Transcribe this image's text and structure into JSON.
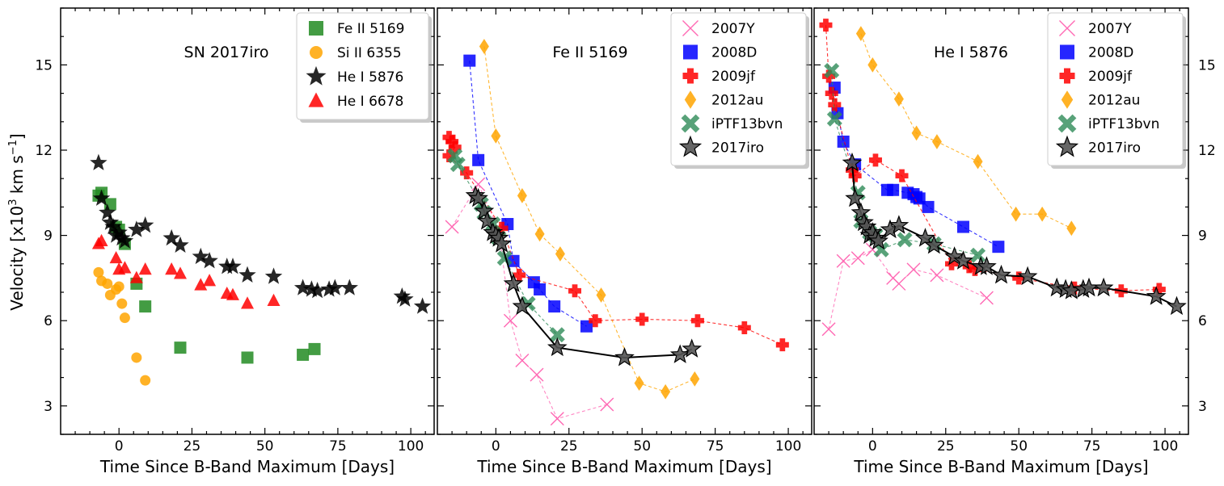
{
  "figure": {
    "ylabel": "Velocity [x10$^3$ km s$^{-1}$]",
    "ylabel_main": "Velocity [x10",
    "ylabel_sup1": "3",
    "ylabel_mid": " km s",
    "ylabel_sup2": "−1",
    "ylabel_end": "]"
  },
  "chart_data": [
    {
      "type": "scatter",
      "title": "SN 2017iro",
      "xlabel": "Time Since B-Band Maximum [Days]",
      "ylabel": "Velocity [x10^3 km s^-1]",
      "xlim": [
        -20,
        108
      ],
      "ylim": [
        2,
        17
      ],
      "xticks": [
        0,
        25,
        50,
        75,
        100
      ],
      "yticks": [
        3,
        6,
        9,
        12,
        15
      ],
      "legend_position": "top-right",
      "series": [
        {
          "name": "Fe II 5169",
          "marker": "square",
          "color": "#228B22",
          "x": [
            -7,
            -6,
            -3,
            -1,
            0,
            2,
            6,
            9,
            21,
            44,
            63,
            67
          ],
          "y": [
            10.4,
            10.5,
            10.1,
            9.3,
            9.2,
            8.7,
            7.3,
            6.5,
            5.05,
            4.7,
            4.8,
            5.0
          ]
        },
        {
          "name": "Si II 6355",
          "marker": "circle",
          "color": "#FFA500",
          "x": [
            -7,
            -6,
            -4,
            -3,
            -1,
            0,
            1,
            2,
            6,
            9
          ],
          "y": [
            7.7,
            7.4,
            7.3,
            6.9,
            7.1,
            7.2,
            6.6,
            6.1,
            4.7,
            3.9
          ]
        },
        {
          "name": "He I 5876",
          "marker": "star",
          "color": "#000000",
          "x": [
            -7,
            -6,
            -4,
            -3,
            -2,
            -1,
            0,
            1,
            2,
            6,
            9,
            18,
            21,
            28,
            31,
            37,
            39,
            44,
            53,
            63,
            66,
            68,
            72,
            74,
            79,
            97,
            98,
            104
          ],
          "y": [
            11.55,
            10.3,
            9.8,
            9.45,
            9.3,
            9.0,
            9.1,
            8.9,
            8.8,
            9.2,
            9.35,
            8.9,
            8.65,
            8.25,
            8.1,
            7.9,
            7.9,
            7.6,
            7.55,
            7.15,
            7.1,
            7.05,
            7.1,
            7.15,
            7.15,
            6.85,
            6.75,
            6.5
          ]
        },
        {
          "name": "He I 6678",
          "marker": "triangle",
          "color": "#FF0000",
          "x": [
            -7,
            -6,
            -1,
            0,
            2,
            6,
            9,
            18,
            21,
            28,
            31,
            37,
            39,
            44,
            53
          ],
          "y": [
            8.7,
            8.8,
            8.2,
            7.8,
            7.85,
            7.5,
            7.8,
            7.8,
            7.65,
            7.25,
            7.4,
            6.95,
            6.9,
            6.6,
            6.7
          ]
        }
      ]
    },
    {
      "type": "line",
      "title": "Fe II 5169",
      "xlabel": "Time Since B-Band Maximum [Days]",
      "xlim": [
        -20,
        108
      ],
      "ylim": [
        2,
        17
      ],
      "xticks": [
        0,
        25,
        50,
        75,
        100
      ],
      "yticks": [
        3,
        6,
        9,
        12,
        15
      ],
      "legend_position": "top-right",
      "series": [
        {
          "name": "2007Y",
          "marker": "x",
          "color": "#FF69B4",
          "x": [
            -15,
            -6,
            1,
            5,
            9,
            14,
            21,
            38
          ],
          "y": [
            9.3,
            10.8,
            9.2,
            6.0,
            4.6,
            4.1,
            2.55,
            3.05
          ]
        },
        {
          "name": "2008D",
          "marker": "square",
          "color": "#0000FF",
          "x": [
            -9,
            -6,
            4,
            6,
            13,
            15,
            20,
            31
          ],
          "y": [
            15.15,
            11.65,
            9.4,
            8.1,
            7.35,
            7.1,
            6.5,
            5.8
          ]
        },
        {
          "name": "2009jf",
          "marker": "plus",
          "color": "#FF0000",
          "x": [
            -16,
            -15,
            -14,
            -16,
            -10,
            2,
            8,
            27,
            34,
            50,
            69,
            85,
            98
          ],
          "y": [
            12.45,
            12.3,
            12.1,
            11.8,
            11.2,
            9.25,
            7.6,
            7.05,
            6.0,
            6.05,
            6.0,
            5.75,
            5.15
          ]
        },
        {
          "name": "2012au",
          "marker": "diamond",
          "color": "#FFA500",
          "x": [
            -4,
            0,
            9,
            15,
            22,
            36,
            49,
            58,
            68
          ],
          "y": [
            15.65,
            12.5,
            10.4,
            9.05,
            8.35,
            6.9,
            3.8,
            3.5,
            3.95
          ]
        },
        {
          "name": "iPTF13bvn",
          "marker": "X",
          "color": "#2E8B57",
          "x": [
            -14,
            -13,
            -5,
            -4,
            -1,
            1,
            3,
            11,
            21
          ],
          "y": [
            11.8,
            11.5,
            10.1,
            9.8,
            9.4,
            8.9,
            8.2,
            6.6,
            5.5
          ]
        },
        {
          "name": "2017iro",
          "marker": "star",
          "color": "#555555",
          "x": [
            -7,
            -6,
            -4,
            -3,
            -1,
            0,
            1,
            2,
            6,
            9,
            21,
            44,
            63,
            67
          ],
          "y": [
            10.4,
            10.3,
            9.85,
            9.5,
            9.1,
            9.0,
            8.9,
            8.7,
            7.3,
            6.5,
            5.05,
            4.7,
            4.8,
            5.0
          ]
        }
      ]
    },
    {
      "type": "line",
      "title": "He I 5876",
      "xlabel": "Time Since B-Band Maximum [Days]",
      "xlim": [
        -20,
        108
      ],
      "ylim": [
        2,
        17
      ],
      "xticks": [
        0,
        25,
        50,
        75,
        100
      ],
      "yticks": [
        3,
        6,
        9,
        12,
        15
      ],
      "legend_position": "top-right",
      "series": [
        {
          "name": "2007Y",
          "marker": "x",
          "color": "#FF69B4",
          "x": [
            -15,
            -10,
            -5,
            0,
            7,
            9,
            14,
            22,
            39
          ],
          "y": [
            5.7,
            8.1,
            8.2,
            8.5,
            7.5,
            7.3,
            7.8,
            7.6,
            6.8
          ]
        },
        {
          "name": "2008D",
          "marker": "square",
          "color": "#0000FF",
          "x": [
            -13,
            -12,
            -10,
            -6,
            5,
            7,
            12,
            14,
            15,
            16,
            19,
            31,
            43
          ],
          "y": [
            14.2,
            13.3,
            12.3,
            11.5,
            10.6,
            10.6,
            10.5,
            10.45,
            10.35,
            10.3,
            10.0,
            9.3,
            8.6
          ]
        },
        {
          "name": "2009jf",
          "marker": "plus",
          "color": "#FF0000",
          "x": [
            -16,
            -15,
            -14,
            -13,
            -7,
            -6,
            1,
            10,
            27,
            33,
            35,
            50,
            69,
            85,
            98
          ],
          "y": [
            16.4,
            14.6,
            14.0,
            13.6,
            11.3,
            11.1,
            11.65,
            11.1,
            8.0,
            7.9,
            7.8,
            7.5,
            7.15,
            7.05,
            7.1
          ]
        },
        {
          "name": "2012au",
          "marker": "diamond",
          "color": "#FFA500",
          "x": [
            -4,
            0,
            9,
            15,
            22,
            36,
            49,
            58,
            68
          ],
          "y": [
            16.1,
            15.0,
            13.8,
            12.6,
            12.3,
            11.6,
            9.75,
            9.75,
            9.25
          ]
        },
        {
          "name": "iPTF13bvn",
          "marker": "X",
          "color": "#2E8B57",
          "x": [
            -14,
            -13,
            -5,
            -4,
            -1,
            1,
            3,
            11,
            21,
            36
          ],
          "y": [
            14.8,
            13.1,
            10.5,
            9.5,
            9.1,
            9.0,
            8.5,
            8.85,
            8.7,
            8.3
          ]
        },
        {
          "name": "2017iro",
          "marker": "star",
          "color": "#555555",
          "x": [
            -7,
            -6,
            -4,
            -3,
            -2,
            -1,
            0,
            1,
            2,
            6,
            9,
            18,
            21,
            28,
            31,
            37,
            39,
            44,
            53,
            63,
            66,
            68,
            72,
            74,
            79,
            97,
            104
          ],
          "y": [
            11.55,
            10.3,
            9.8,
            9.45,
            9.3,
            9.0,
            9.1,
            8.9,
            8.8,
            9.2,
            9.35,
            8.9,
            8.65,
            8.25,
            8.1,
            7.9,
            7.9,
            7.6,
            7.55,
            7.15,
            7.1,
            7.05,
            7.1,
            7.15,
            7.15,
            6.85,
            6.5
          ]
        }
      ]
    }
  ]
}
